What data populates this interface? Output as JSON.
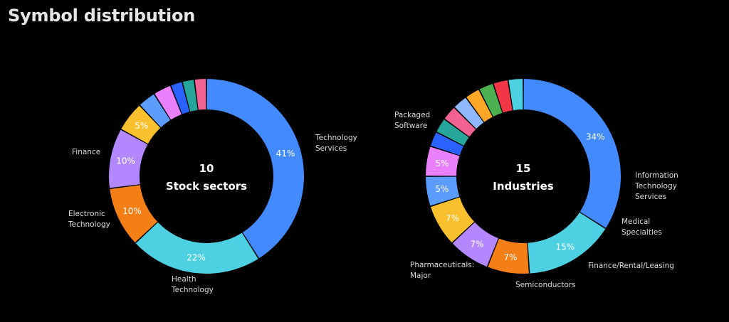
{
  "title": "Symbol distribution",
  "colors": {
    "blue": "#448aff",
    "cyan": "#4dd0e1",
    "orange": "#f57f17",
    "purple": "#b388ff",
    "yellow": "#fbc02d",
    "lightblue": "#4c8cf0",
    "violet": "#ea80fc",
    "royal": "#2962ff",
    "teal": "#26a69a",
    "pink": "#f06292",
    "red": "#f23645",
    "green": "#4caf50",
    "amber": "#ffa726",
    "skyblue": "#64b5f6"
  },
  "chart_data": [
    {
      "type": "pie",
      "center_count": "10",
      "center_label": "Stock sectors",
      "slices": [
        {
          "name": "Technology Services",
          "value": 41,
          "label": "41%",
          "color": "#448aff",
          "callout": [
            "Technology",
            "Services"
          ]
        },
        {
          "name": "Health Technology",
          "value": 22,
          "label": "22%",
          "color": "#4dd0e1",
          "callout": [
            "Health",
            "Technology"
          ]
        },
        {
          "name": "Electronic Technology",
          "value": 10,
          "label": "10%",
          "color": "#f57f17",
          "callout": [
            "Electronic",
            "Technology"
          ]
        },
        {
          "name": "Finance",
          "value": 10,
          "label": "10%",
          "color": "#b388ff",
          "callout": [
            "Finance"
          ]
        },
        {
          "name": "",
          "value": 5,
          "label": "5%",
          "color": "#fbc02d",
          "callout": []
        },
        {
          "name": "",
          "value": 3,
          "label": "",
          "color": "#5c9cff",
          "callout": []
        },
        {
          "name": "",
          "value": 3,
          "label": "",
          "color": "#ea80fc",
          "callout": []
        },
        {
          "name": "",
          "value": 2,
          "label": "",
          "color": "#2962ff",
          "callout": []
        },
        {
          "name": "",
          "value": 2,
          "label": "",
          "color": "#26a69a",
          "callout": []
        },
        {
          "name": "",
          "value": 2,
          "label": "",
          "color": "#f06292",
          "callout": []
        }
      ]
    },
    {
      "type": "pie",
      "center_count": "15",
      "center_label": "Industries",
      "slices": [
        {
          "name": "Packaged Software",
          "value": 34,
          "label": "34%",
          "color": "#448aff",
          "callout": [
            "Packaged",
            "Software"
          ]
        },
        {
          "name": "Pharmaceuticals: Major",
          "value": 15,
          "label": "15%",
          "color": "#4dd0e1",
          "callout": [
            "Pharmaceuticals:",
            "Major"
          ]
        },
        {
          "name": "Semiconductors",
          "value": 7,
          "label": "7%",
          "color": "#f57f17",
          "callout": [
            "Semiconductors"
          ]
        },
        {
          "name": "Finance/Rental/Leasing",
          "value": 7,
          "label": "7%",
          "color": "#b388ff",
          "callout": [
            "Finance/Rental/Leasing"
          ]
        },
        {
          "name": "Medical Specialties",
          "value": 7,
          "label": "7%",
          "color": "#fbc02d",
          "callout": [
            "Medical",
            "Specialties"
          ]
        },
        {
          "name": "Information Technology Services",
          "value": 5,
          "label": "5%",
          "color": "#5c9cff",
          "callout": [
            "Information",
            "Technology",
            "Services"
          ]
        },
        {
          "name": "",
          "value": 5,
          "label": "5%",
          "color": "#ea80fc",
          "callout": []
        },
        {
          "name": "",
          "value": 2.5,
          "label": "",
          "color": "#2962ff",
          "callout": []
        },
        {
          "name": "",
          "value": 2.5,
          "label": "",
          "color": "#26a69a",
          "callout": []
        },
        {
          "name": "",
          "value": 2.5,
          "label": "",
          "color": "#f06292",
          "callout": []
        },
        {
          "name": "",
          "value": 2.5,
          "label": "",
          "color": "#90b8ff",
          "callout": []
        },
        {
          "name": "",
          "value": 2.5,
          "label": "",
          "color": "#ffa726",
          "callout": []
        },
        {
          "name": "",
          "value": 2.5,
          "label": "",
          "color": "#4caf50",
          "callout": []
        },
        {
          "name": "",
          "value": 2.5,
          "label": "",
          "color": "#f23645",
          "callout": []
        },
        {
          "name": "",
          "value": 2.5,
          "label": "",
          "color": "#4dd0e1",
          "callout": []
        }
      ]
    }
  ]
}
